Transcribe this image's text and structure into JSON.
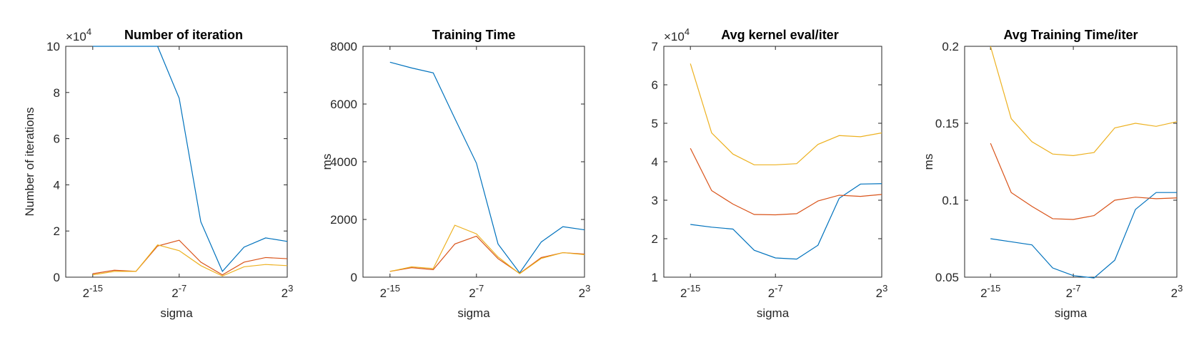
{
  "chart_data": [
    {
      "type": "line",
      "title": "Number of iteration",
      "xlabel": "sigma",
      "ylabel": "Number of iterations",
      "y_multiplier": {
        "base": "×10",
        "exponent": "4"
      },
      "x": [
        -15,
        -13,
        -11,
        -9,
        -7,
        -5,
        -3,
        -1,
        1,
        3
      ],
      "xlim": [
        -17.5,
        3
      ],
      "xticks": [
        {
          "value": -15,
          "label": "2",
          "exponent": "-15"
        },
        {
          "value": -7,
          "label": "2",
          "exponent": "-7"
        },
        {
          "value": 3,
          "label": "2",
          "exponent": "3"
        }
      ],
      "ylim": [
        0,
        100000
      ],
      "yticks": [
        {
          "value": 0,
          "label": "0"
        },
        {
          "value": 20000,
          "label": "2"
        },
        {
          "value": 40000,
          "label": "4"
        },
        {
          "value": 60000,
          "label": "6"
        },
        {
          "value": 80000,
          "label": "8"
        },
        {
          "value": 100000,
          "label": "10"
        }
      ],
      "series": [
        {
          "color": "#0072BD",
          "values": [
            100000,
            100000,
            100000,
            100000,
            77500,
            24000,
            2500,
            13000,
            17000,
            15500
          ]
        },
        {
          "color": "#D95319",
          "values": [
            1500,
            3000,
            2500,
            13500,
            16000,
            6500,
            1000,
            6500,
            8500,
            8000
          ]
        },
        {
          "color": "#EDB120",
          "values": [
            1000,
            2500,
            2500,
            14000,
            11500,
            5000,
            500,
            4500,
            5500,
            5000
          ]
        }
      ]
    },
    {
      "type": "line",
      "title": "Training Time",
      "xlabel": "sigma",
      "ylabel": "ms",
      "x": [
        -15,
        -13,
        -11,
        -9,
        -7,
        -5,
        -3,
        -1,
        1,
        3
      ],
      "xlim": [
        -17.5,
        3
      ],
      "xticks": [
        {
          "value": -15,
          "label": "2",
          "exponent": "-15"
        },
        {
          "value": -7,
          "label": "2",
          "exponent": "-7"
        },
        {
          "value": 3,
          "label": "2",
          "exponent": "3"
        }
      ],
      "ylim": [
        0,
        8000
      ],
      "yticks": [
        0,
        2000,
        4000,
        6000,
        8000
      ],
      "series": [
        {
          "color": "#0072BD",
          "values": [
            7450,
            7250,
            7080,
            5500,
            3950,
            1150,
            150,
            1220,
            1750,
            1640
          ]
        },
        {
          "color": "#D95319",
          "values": [
            200,
            330,
            260,
            1150,
            1420,
            640,
            130,
            680,
            850,
            800
          ]
        },
        {
          "color": "#EDB120",
          "values": [
            200,
            360,
            300,
            1800,
            1500,
            700,
            120,
            650,
            850,
            780
          ]
        }
      ]
    },
    {
      "type": "line",
      "title": "Avg kernel eval/iter",
      "xlabel": "sigma",
      "y_multiplier": {
        "base": "×10",
        "exponent": "4"
      },
      "x": [
        -15,
        -13,
        -11,
        -9,
        -7,
        -5,
        -3,
        -1,
        1,
        3
      ],
      "xlim": [
        -17.5,
        3
      ],
      "xticks": [
        {
          "value": -15,
          "label": "2",
          "exponent": "-15"
        },
        {
          "value": -7,
          "label": "2",
          "exponent": "-7"
        },
        {
          "value": 3,
          "label": "2",
          "exponent": "3"
        }
      ],
      "ylim": [
        10000,
        70000
      ],
      "yticks": [
        {
          "value": 10000,
          "label": "1"
        },
        {
          "value": 20000,
          "label": "2"
        },
        {
          "value": 30000,
          "label": "3"
        },
        {
          "value": 40000,
          "label": "4"
        },
        {
          "value": 50000,
          "label": "5"
        },
        {
          "value": 60000,
          "label": "6"
        },
        {
          "value": 70000,
          "label": "7"
        }
      ],
      "series": [
        {
          "color": "#0072BD",
          "values": [
            23700,
            23000,
            22500,
            17000,
            15000,
            14700,
            18300,
            30500,
            34200,
            34300
          ]
        },
        {
          "color": "#D95319",
          "values": [
            43500,
            32500,
            29000,
            26300,
            26200,
            26500,
            29800,
            31300,
            31000,
            31500
          ]
        },
        {
          "color": "#EDB120",
          "values": [
            65500,
            47500,
            42000,
            39200,
            39200,
            39500,
            44500,
            46800,
            46500,
            47500
          ]
        }
      ]
    },
    {
      "type": "line",
      "title": "Avg Training Time/iter",
      "xlabel": "sigma",
      "ylabel": "ms",
      "x": [
        -15,
        -13,
        -11,
        -9,
        -7,
        -5,
        -3,
        -1,
        1,
        3
      ],
      "xlim": [
        -17.5,
        3
      ],
      "xticks": [
        {
          "value": -15,
          "label": "2",
          "exponent": "-15"
        },
        {
          "value": -7,
          "label": "2",
          "exponent": "-7"
        },
        {
          "value": 3,
          "label": "2",
          "exponent": "3"
        }
      ],
      "ylim": [
        0.05,
        0.2
      ],
      "yticks": [
        0.05,
        0.1,
        0.15,
        0.2
      ],
      "series": [
        {
          "color": "#0072BD",
          "values": [
            0.075,
            0.073,
            0.071,
            0.056,
            0.051,
            0.0495,
            0.061,
            0.094,
            0.105,
            0.105
          ]
        },
        {
          "color": "#D95319",
          "values": [
            0.137,
            0.105,
            0.096,
            0.088,
            0.0875,
            0.09,
            0.1,
            0.102,
            0.101,
            0.1015
          ]
        },
        {
          "color": "#EDB120",
          "values": [
            0.2,
            0.153,
            0.138,
            0.13,
            0.129,
            0.131,
            0.147,
            0.15,
            0.148,
            0.151
          ]
        }
      ]
    }
  ]
}
